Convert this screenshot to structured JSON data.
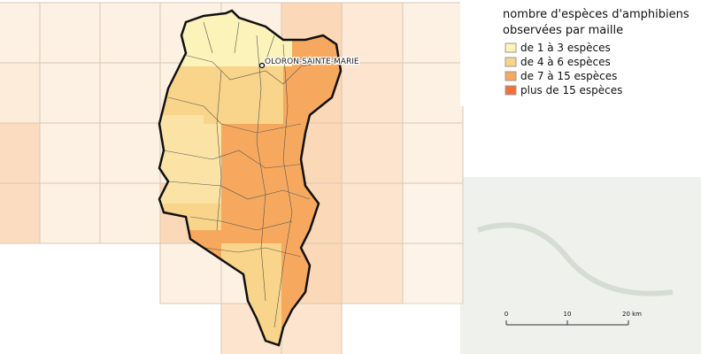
{
  "legend": {
    "title": [
      "nombre d'espèces d'amphibiens",
      "observées par maille"
    ],
    "items": [
      "de 1 à 3 espèces",
      "de 4 à 6 espèces",
      "de 7 à 15 espèces",
      "plus de 15 espèces"
    ]
  },
  "places": [
    "OLORON-SAINTE-MARIE"
  ],
  "scale": {
    "labels": [
      "0",
      "10",
      "20 km"
    ]
  }
}
